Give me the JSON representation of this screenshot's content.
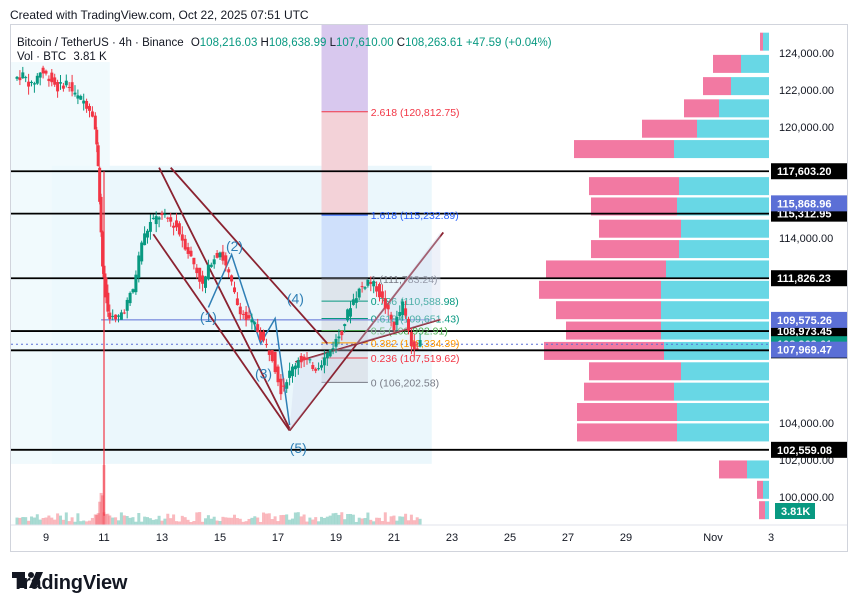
{
  "credit": "Created with TradingView.com, Oct 22, 2025 07:51 UTC",
  "brand": "TradingView",
  "legend": {
    "symbol": "Bitcoin / TetherUS · 4h · Binance",
    "open_label": "O",
    "open": "108,216.03",
    "high_label": "H",
    "high": "108,638.99",
    "low_label": "L",
    "low": "107,610.00",
    "close_label": "C",
    "close": "108,263.61",
    "change": "+47.59 (+0.04%)",
    "vol_label": "Vol · BTC",
    "vol": "3.81 K"
  },
  "colors": {
    "up": "#089981",
    "down": "#f23645",
    "fib": "#2962ff",
    "channel": "#8b2331",
    "wave": "#2f7fb5",
    "profile_up": "#4dd0e1",
    "profile_down": "#f06292"
  },
  "chart_data": {
    "type": "candlestick",
    "price_axis": {
      "min": 98500,
      "max": 125500,
      "tick_labels": [
        "124,000.00",
        "122,000.00",
        "120,000.00",
        "114,000.00",
        "104,000.00",
        "102,000.00",
        "100,000.00"
      ],
      "tick_values": [
        124000,
        122000,
        120000,
        114000,
        104000,
        102000,
        100000
      ]
    },
    "time_axis": {
      "labels": [
        "9",
        "11",
        "13",
        "15",
        "17",
        "19",
        "21",
        "23",
        "25",
        "27",
        "29",
        "Nov",
        "3"
      ],
      "day_values": [
        9,
        11,
        13,
        15,
        17,
        19,
        21,
        23,
        25,
        27,
        29,
        32,
        34
      ]
    },
    "ohlc_path_days": [
      8.0,
      8.3,
      8.6,
      8.9,
      9.2,
      9.5,
      9.8,
      10.1,
      10.4,
      10.7,
      10.85,
      11.0,
      11.2,
      11.5,
      11.8,
      12.1,
      12.4,
      12.7,
      13.0,
      13.3,
      13.6,
      13.9,
      14.2,
      14.5,
      14.8,
      15.1,
      15.4,
      15.7,
      16.0,
      16.3,
      16.6,
      16.9,
      17.2,
      17.5,
      17.8,
      18.1,
      18.4,
      18.7,
      19.0,
      19.3,
      19.6,
      19.9,
      20.2,
      20.5,
      20.8,
      21.1,
      21.4,
      21.7,
      22.0
    ],
    "ohlc_path_prices": [
      122600,
      122800,
      122200,
      123000,
      122700,
      122100,
      122400,
      121700,
      121400,
      120800,
      118000,
      112500,
      110000,
      109500,
      110200,
      111200,
      113800,
      114800,
      115200,
      115000,
      114600,
      113600,
      112600,
      111400,
      112800,
      113300,
      112000,
      110400,
      109600,
      109300,
      108400,
      107600,
      105800,
      106700,
      107500,
      107300,
      107000,
      107500,
      108200,
      109000,
      110400,
      111200,
      111700,
      111300,
      110300,
      109200,
      110400,
      108200,
      108263.61
    ],
    "horizontal_levels": [
      {
        "label": "117,603.20",
        "value": 117603.2
      },
      {
        "label": "115,312.95",
        "value": 115312.95
      },
      {
        "label": "111,826.23",
        "value": 111826.23
      },
      {
        "label": "108,973.45",
        "value": 108973.45
      },
      {
        "label": "107,931.98",
        "value": 107931.98
      },
      {
        "label": "102,559.08",
        "value": 102559.08
      }
    ],
    "price_badges": [
      {
        "label": "115,868.96",
        "value": 115868.96,
        "color": "#5b6fd6"
      },
      {
        "label": "109,575.26",
        "value": 109575.26,
        "color": "#5b6fd6"
      },
      {
        "label": "108,263.61",
        "value": 108263.61,
        "color": "#089981"
      },
      {
        "label": "107,969.47",
        "value": 107969.47,
        "color": "#5b6fd6"
      }
    ],
    "volume_badge": "3.81K",
    "fib_levels": [
      {
        "label": "2.618 (120,812.75)",
        "value": 120812.75,
        "color": "#f23645"
      },
      {
        "label": "1.618 (115,232.89)",
        "value": 115232.89,
        "color": "#2962ff"
      },
      {
        "label": "1 (111,783.24)",
        "value": 111783.24,
        "color": "#787b86"
      },
      {
        "label": "0.786 (110,588.98)",
        "value": 110588.98,
        "color": "#089981"
      },
      {
        "label": "0.618 (109,651.43)",
        "value": 109651.43,
        "color": "#089981"
      },
      {
        "label": "0.5 (108,992.91)",
        "value": 108992.91,
        "color": "#4caf50"
      },
      {
        "label": "0.382 (108,334.39)",
        "value": 108334.39,
        "color": "#ff9800"
      },
      {
        "label": "0.236 (107,519.62)",
        "value": 107519.62,
        "color": "#f23645"
      },
      {
        "label": "0 (106,202.58)",
        "value": 106202.58,
        "color": "#787b86"
      }
    ],
    "wave_labels": [
      {
        "text": "(1)",
        "day": 14.6,
        "price": 109450
      },
      {
        "text": "(2)",
        "day": 15.5,
        "price": 113300
      },
      {
        "text": "(3)",
        "day": 16.5,
        "price": 106400
      },
      {
        "text": "(4)",
        "day": 17.6,
        "price": 110450
      },
      {
        "text": "(5)",
        "day": 17.7,
        "price": 102400
      }
    ],
    "wave_path_days": [
      14.6,
      15.4,
      16.4,
      16.9,
      17.4
    ],
    "wave_path_prices": [
      110250,
      113100,
      108300,
      109650,
      103900
    ],
    "volume_profile": [
      {
        "price": 124600,
        "buy": 6,
        "sell": 3
      },
      {
        "price": 123400,
        "buy": 28,
        "sell": 28
      },
      {
        "price": 122200,
        "buy": 38,
        "sell": 28
      },
      {
        "price": 121000,
        "buy": 50,
        "sell": 35
      },
      {
        "price": 119900,
        "buy": 72,
        "sell": 55
      },
      {
        "price": 118800,
        "buy": 95,
        "sell": 100
      },
      {
        "price": 116800,
        "buy": 90,
        "sell": 90
      },
      {
        "price": 115700,
        "buy": 92,
        "sell": 86
      },
      {
        "price": 114500,
        "buy": 88,
        "sell": 82
      },
      {
        "price": 113400,
        "buy": 90,
        "sell": 88
      },
      {
        "price": 112300,
        "buy": 103,
        "sell": 120
      },
      {
        "price": 111200,
        "buy": 108,
        "sell": 122
      },
      {
        "price": 110100,
        "buy": 108,
        "sell": 105
      },
      {
        "price": 109000,
        "buy": 108,
        "sell": 95
      },
      {
        "price": 107900,
        "buy": 105,
        "sell": 120
      },
      {
        "price": 106800,
        "buy": 88,
        "sell": 92
      },
      {
        "price": 105700,
        "buy": 95,
        "sell": 90
      },
      {
        "price": 104600,
        "buy": 92,
        "sell": 100
      },
      {
        "price": 103500,
        "buy": 92,
        "sell": 100
      },
      {
        "price": 101500,
        "buy": 22,
        "sell": 28
      },
      {
        "price": 100400,
        "buy": 6,
        "sell": 6
      },
      {
        "price": 99300,
        "buy": 4,
        "sell": 6
      }
    ]
  }
}
